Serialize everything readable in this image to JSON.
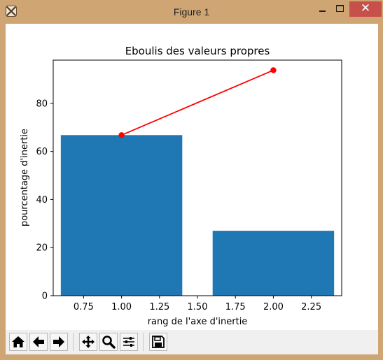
{
  "window": {
    "title": "Figure 1",
    "close_glyph": "✕"
  },
  "toolbar": {
    "buttons": [
      {
        "name": "home-icon"
      },
      {
        "name": "back-arrow-icon"
      },
      {
        "name": "forward-arrow-icon"
      },
      {
        "name": "pan-icon"
      },
      {
        "name": "zoom-icon"
      },
      {
        "name": "subplots-icon"
      },
      {
        "name": "save-icon"
      }
    ]
  },
  "chart_data": {
    "type": "bar",
    "title": "Eboulis des valeurs propres",
    "xlabel": "rang de l'axe d'inertie",
    "ylabel": "pourcentage d'inertie",
    "bars": {
      "x": [
        1,
        2
      ],
      "width": 0.8,
      "values": [
        66.8,
        27.0
      ],
      "color": "#1f77b4"
    },
    "line": {
      "x": [
        1,
        2
      ],
      "y": [
        66.8,
        93.8
      ],
      "color": "#ff0000"
    },
    "xlim": [
      0.55,
      2.45
    ],
    "ylim": [
      0,
      98
    ],
    "xticks": [
      0.75,
      1.0,
      1.25,
      1.5,
      1.75,
      2.0,
      2.25
    ],
    "xtick_labels": [
      "0.75",
      "1.00",
      "1.25",
      "1.50",
      "1.75",
      "2.00",
      "2.25"
    ],
    "yticks": [
      0,
      20,
      40,
      60,
      80
    ],
    "ytick_labels": [
      "0",
      "20",
      "40",
      "60",
      "80"
    ],
    "grid": false,
    "legend": "none"
  }
}
